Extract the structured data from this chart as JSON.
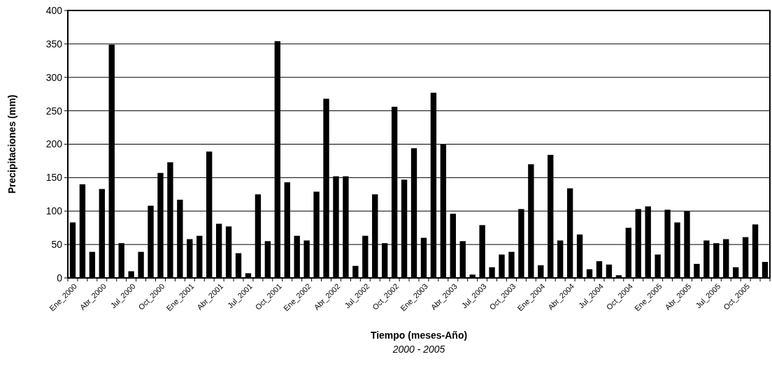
{
  "chart_data": {
    "type": "bar",
    "xlabel": "Tiempo (meses-Año)",
    "ylabel": "Precipitaciones (mm)",
    "annotations": [
      "2000 - 2005"
    ],
    "categories": [
      "Ene_2000",
      null,
      null,
      "Abr_2000",
      null,
      null,
      "Jul_2000",
      null,
      null,
      "Oct_2000",
      null,
      null,
      "Ene_2001",
      null,
      null,
      "Abr_2001",
      null,
      null,
      "Jul_2001",
      null,
      null,
      "Oct_2001",
      null,
      null,
      "Ene_2002",
      null,
      null,
      "Abr_2002",
      null,
      null,
      "Jul_2002",
      null,
      null,
      "Oct_2002",
      null,
      null,
      "Ene_2003",
      null,
      null,
      "Abr_2003",
      null,
      null,
      "Jul_2003",
      null,
      null,
      "Oct_2003",
      null,
      null,
      "Ene_2004",
      null,
      null,
      "Abr_2004",
      null,
      null,
      "Jul_2004",
      null,
      null,
      "Oct_2004",
      null,
      null,
      "Ene_2005",
      null,
      null,
      "Abr_2005",
      null,
      null,
      "Jul_2005",
      null,
      null,
      "Oct_2005",
      null,
      null
    ],
    "values": [
      83,
      140,
      39,
      133,
      349,
      52,
      10,
      39,
      108,
      157,
      173,
      117,
      58,
      63,
      189,
      81,
      77,
      37,
      7,
      125,
      55,
      354,
      143,
      63,
      56,
      129,
      268,
      152,
      152,
      18,
      63,
      125,
      52,
      256,
      147,
      194,
      60,
      277,
      200,
      96,
      55,
      5,
      79,
      16,
      35,
      39,
      103,
      170,
      19,
      184,
      56,
      134,
      65,
      13,
      25,
      20,
      4,
      75,
      103,
      107,
      35,
      102,
      83,
      100,
      21,
      56,
      52,
      58,
      16,
      61,
      80,
      24
    ],
    "color": "#000000",
    "ylim": [
      0,
      400
    ],
    "yticks": [
      0,
      50,
      100,
      150,
      200,
      250,
      300,
      350,
      400
    ],
    "grid": "y"
  }
}
